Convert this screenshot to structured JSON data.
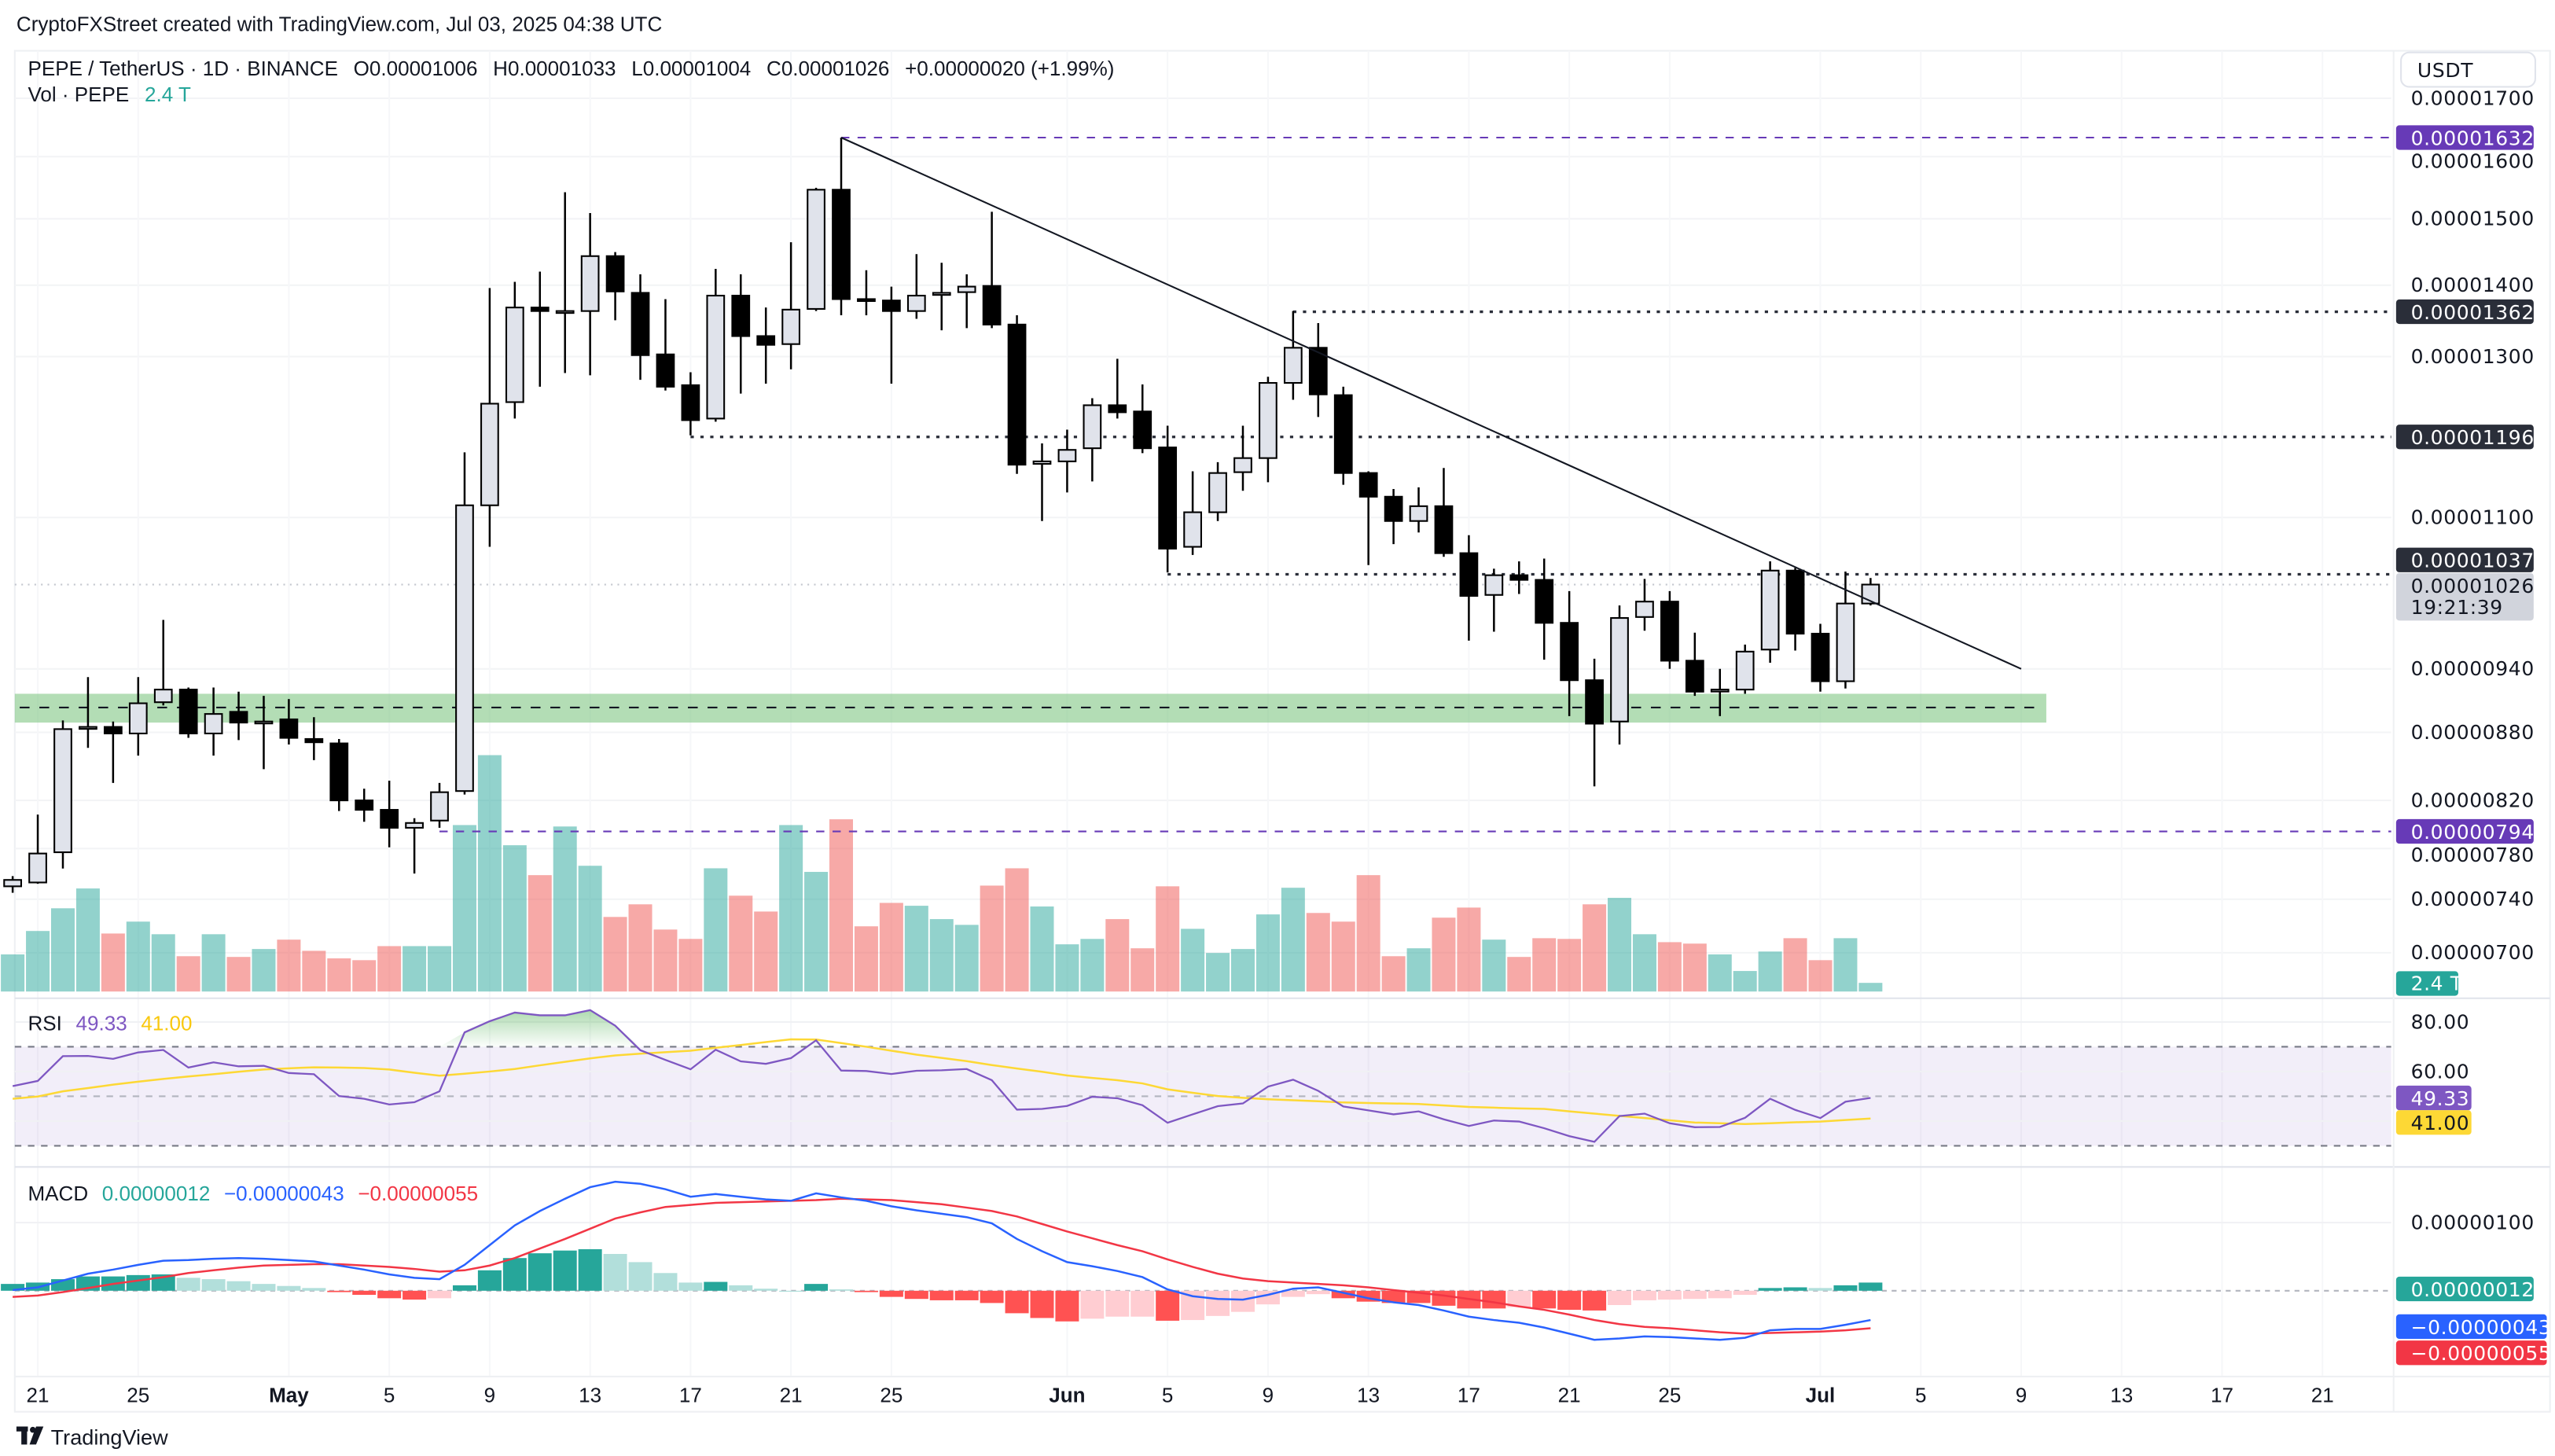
{
  "header": {
    "attribution": "CryptoFXStreet created with TradingView.com, Jul 03, 2025 04:38 UTC"
  },
  "legend": {
    "symbol": "PEPE / TetherUS · 1D · BINANCE",
    "o_label": "O",
    "o": "0.00001006",
    "h_label": "H",
    "h": "0.00001033",
    "l_label": "L",
    "l": "0.00001004",
    "c_label": "C",
    "c": "0.00001026",
    "change": "+0.00000020 (+1.99%)",
    "vol_label": "Vol · PEPE",
    "vol_value": "2.4 T"
  },
  "currency_button": "USDT",
  "price_axis": {
    "scale": "log",
    "ticks": [
      "0.00001700",
      "0.00001600",
      "0.00001500",
      "0.00001400",
      "0.00001300",
      "0.00001100",
      "0.00000940",
      "0.00000880",
      "0.00000820",
      "0.00000780",
      "0.00000740",
      "0.00000700"
    ],
    "tags": {
      "high_line": "0.00001632",
      "level_1362": "0.00001362",
      "level_1196": "0.00001196",
      "level_1037": "0.00001037",
      "last_price": "0.00001026",
      "countdown": "19:21:39",
      "low_line": "0.00000794",
      "volume": "2.4 T"
    }
  },
  "rsi": {
    "label": "RSI",
    "value": "49.33",
    "ma_value": "41.00",
    "ticks": [
      "80.00",
      "60.00"
    ],
    "bands": [
      70,
      50,
      30
    ]
  },
  "macd": {
    "label": "MACD",
    "hist_value": "0.00000012",
    "macd_value": "−0.00000043",
    "signal_value": "−0.00000055",
    "ticks": [
      "0.00000100"
    ]
  },
  "time_axis": [
    {
      "label": "21",
      "date": "2025-04-21"
    },
    {
      "label": "25",
      "date": "2025-04-25"
    },
    {
      "label": "May",
      "date": "2025-05-01",
      "bold": true
    },
    {
      "label": "5",
      "date": "2025-05-05"
    },
    {
      "label": "9",
      "date": "2025-05-09"
    },
    {
      "label": "13",
      "date": "2025-05-13"
    },
    {
      "label": "17",
      "date": "2025-05-17"
    },
    {
      "label": "21",
      "date": "2025-05-21"
    },
    {
      "label": "25",
      "date": "2025-05-25"
    },
    {
      "label": "Jun",
      "date": "2025-06-01",
      "bold": true
    },
    {
      "label": "5",
      "date": "2025-06-05"
    },
    {
      "label": "9",
      "date": "2025-06-09"
    },
    {
      "label": "13",
      "date": "2025-06-13"
    },
    {
      "label": "17",
      "date": "2025-06-17"
    },
    {
      "label": "21",
      "date": "2025-06-21"
    },
    {
      "label": "25",
      "date": "2025-06-25"
    },
    {
      "label": "Jul",
      "date": "2025-07-01",
      "bold": true
    },
    {
      "label": "5",
      "date": "2025-07-05"
    },
    {
      "label": "9",
      "date": "2025-07-09"
    },
    {
      "label": "13",
      "date": "2025-07-13"
    },
    {
      "label": "17",
      "date": "2025-07-17"
    },
    {
      "label": "21",
      "date": "2025-07-21"
    }
  ],
  "footer": {
    "logo_text": "TradingView"
  },
  "colors": {
    "up_candle": "#e0e3eb",
    "down_candle": "#000000",
    "vol_up": "#26a69a",
    "vol_down": "#ef5350",
    "purple_level": "#673ab7",
    "dark_tag": "#2a2e39",
    "support_zone": "#81c784",
    "rsi_line": "#7e57c2",
    "rsi_ma": "#fdd835",
    "macd_line": "#2962ff",
    "signal_line": "#f23645",
    "hist_up": "#26a69a",
    "hist_down": "#ff5252"
  },
  "chart_data": {
    "type": "candlestick",
    "columns": [
      "date",
      "open",
      "high",
      "low",
      "close",
      "volume"
    ],
    "candles": [
      [
        "2025-04-20",
        7.5e-06,
        7.58e-06,
        7.45e-06,
        7.55e-06,
        10300000000000.0
      ],
      [
        "2025-04-21",
        7.53e-06,
        8.08e-06,
        7.52e-06,
        7.76e-06,
        16800000000000.0
      ],
      [
        "2025-04-22",
        7.77e-06,
        8.91e-06,
        7.64e-06,
        8.83e-06,
        23100000000000.0
      ],
      [
        "2025-04-23",
        8.84e-06,
        9.32e-06,
        8.66e-06,
        8.85e-06,
        28600000000000.0
      ],
      [
        "2025-04-24",
        8.85e-06,
        8.9e-06,
        8.35e-06,
        8.79e-06,
        16100000000000.0
      ],
      [
        "2025-04-25",
        8.79e-06,
        9.32e-06,
        8.59e-06,
        9.07e-06,
        19400000000000.0
      ],
      [
        "2025-04-26",
        9.08e-06,
        9.89e-06,
        9.05e-06,
        9.2e-06,
        15900000000000.0
      ],
      [
        "2025-04-27",
        9.2e-06,
        9.22e-06,
        8.75e-06,
        8.79e-06,
        9800000000000.0
      ],
      [
        "2025-04-28",
        8.79e-06,
        9.22e-06,
        8.59e-06,
        8.97e-06,
        15900000000000.0
      ],
      [
        "2025-04-29",
        8.99e-06,
        9.18e-06,
        8.73e-06,
        8.89e-06,
        9600000000000.0
      ],
      [
        "2025-04-30",
        8.89e-06,
        9.14e-06,
        8.47e-06,
        8.9e-06,
        11800000000000.0
      ],
      [
        "2025-05-01",
        8.92e-06,
        9.11e-06,
        8.69e-06,
        8.75e-06,
        14400000000000.0
      ],
      [
        "2025-05-02",
        8.74e-06,
        8.94e-06,
        8.55e-06,
        8.71e-06,
        11300000000000.0
      ],
      [
        "2025-05-03",
        8.7e-06,
        8.74e-06,
        8.11e-06,
        8.2e-06,
        9200000000000.0
      ],
      [
        "2025-05-04",
        8.2e-06,
        8.3e-06,
        8.02e-06,
        8.12e-06,
        8700000000000.0
      ],
      [
        "2025-05-05",
        8.12e-06,
        8.37e-06,
        7.81e-06,
        7.97e-06,
        12600000000000.0
      ],
      [
        "2025-05-06",
        7.97e-06,
        8.05e-06,
        7.6e-06,
        8.01e-06,
        12600000000000.0
      ],
      [
        "2025-05-07",
        8.03e-06,
        8.35e-06,
        7.97e-06,
        8.27e-06,
        12600000000000.0
      ],
      [
        "2025-05-08",
        8.28e-06,
        1.177e-05,
        8.25e-06,
        1.114e-05,
        46200000000000.0
      ],
      [
        "2025-05-09",
        1.114e-05,
        1.396e-05,
        1.067e-05,
        1.238e-05,
        65600000000000.0
      ],
      [
        "2025-05-10",
        1.24e-05,
        1.405e-05,
        1.219e-05,
        1.368e-05,
        40600000000000.0
      ],
      [
        "2025-05-11",
        1.368e-05,
        1.42e-05,
        1.26e-05,
        1.363e-05,
        32300000000000.0
      ],
      [
        "2025-05-12",
        1.362e-05,
        1.542e-05,
        1.278e-05,
        1.363e-05,
        45800000000000.0
      ],
      [
        "2025-05-13",
        1.363e-05,
        1.509e-05,
        1.275e-05,
        1.443e-05,
        34900000000000.0
      ],
      [
        "2025-05-14",
        1.443e-05,
        1.449e-05,
        1.35e-05,
        1.391e-05,
        20700000000000.0
      ],
      [
        "2025-05-15",
        1.389e-05,
        1.416e-05,
        1.269e-05,
        1.302e-05,
        24200000000000.0
      ],
      [
        "2025-05-16",
        1.303e-05,
        1.38e-05,
        1.255e-05,
        1.26e-05,
        17200000000000.0
      ],
      [
        "2025-05-17",
        1.262e-05,
        1.279e-05,
        1.198e-05,
        1.217e-05,
        14600000000000.0
      ],
      [
        "2025-05-18",
        1.219e-05,
        1.424e-05,
        1.215e-05,
        1.385e-05,
        34200000000000.0
      ],
      [
        "2025-05-19",
        1.385e-05,
        1.416e-05,
        1.251e-05,
        1.328e-05,
        26600000000000.0
      ],
      [
        "2025-05-20",
        1.328e-05,
        1.368e-05,
        1.264e-05,
        1.316e-05,
        22200000000000.0
      ],
      [
        "2025-05-21",
        1.317e-05,
        1.464e-05,
        1.283e-05,
        1.365e-05,
        46200000000000.0
      ],
      [
        "2025-05-22",
        1.366e-05,
        1.549e-05,
        1.363e-05,
        1.546e-05,
        33200000000000.0
      ],
      [
        "2025-05-23",
        1.546e-05,
        1.632e-05,
        1.357e-05,
        1.38e-05,
        47800000000000.0
      ],
      [
        "2025-05-24",
        1.38e-05,
        1.422e-05,
        1.357e-05,
        1.379e-05,
        18100000000000.0
      ],
      [
        "2025-05-25",
        1.378e-05,
        1.398e-05,
        1.264e-05,
        1.363e-05,
        24600000000000.0
      ],
      [
        "2025-05-26",
        1.363e-05,
        1.446e-05,
        1.352e-05,
        1.385e-05,
        23800000000000.0
      ],
      [
        "2025-05-27",
        1.386e-05,
        1.433e-05,
        1.336e-05,
        1.389e-05,
        20100000000000.0
      ],
      [
        "2025-05-28",
        1.39e-05,
        1.416e-05,
        1.339e-05,
        1.398e-05,
        18500000000000.0
      ],
      [
        "2025-05-29",
        1.399e-05,
        1.511e-05,
        1.339e-05,
        1.344e-05,
        29400000000000.0
      ],
      [
        "2025-05-30",
        1.344e-05,
        1.357e-05,
        1.151e-05,
        1.162e-05,
        34200000000000.0
      ],
      [
        "2025-05-31",
        1.163e-05,
        1.188e-05,
        1.096e-05,
        1.166e-05,
        23600000000000.0
      ],
      [
        "2025-06-01",
        1.166e-05,
        1.205e-05,
        1.129e-05,
        1.18e-05,
        13100000000000.0
      ],
      [
        "2025-06-02",
        1.182e-05,
        1.245e-05,
        1.142e-05,
        1.236e-05,
        14600000000000.0
      ],
      [
        "2025-06-03",
        1.236e-05,
        1.297e-05,
        1.219e-05,
        1.227e-05,
        20100000000000.0
      ],
      [
        "2025-06-04",
        1.228e-05,
        1.263e-05,
        1.176e-05,
        1.182e-05,
        12000000000000.0
      ],
      [
        "2025-06-05",
        1.183e-05,
        1.21e-05,
        1.039e-05,
        1.065e-05,
        29200000000000.0
      ],
      [
        "2025-06-06",
        1.067e-05,
        1.154e-05,
        1.058e-05,
        1.106e-05,
        17400000000000.0
      ],
      [
        "2025-06-07",
        1.106e-05,
        1.165e-05,
        1.096e-05,
        1.152e-05,
        10700000000000.0
      ],
      [
        "2025-06-08",
        1.153e-05,
        1.21e-05,
        1.131e-05,
        1.17e-05,
        11800000000000.0
      ],
      [
        "2025-06-09",
        1.17e-05,
        1.273e-05,
        1.141e-05,
        1.265e-05,
        21400000000000.0
      ],
      [
        "2025-06-10",
        1.265e-05,
        1.363e-05,
        1.243e-05,
        1.312e-05,
        28800000000000.0
      ],
      [
        "2025-06-11",
        1.312e-05,
        1.346e-05,
        1.221e-05,
        1.25e-05,
        21800000000000.0
      ],
      [
        "2025-06-12",
        1.249e-05,
        1.26e-05,
        1.138e-05,
        1.152e-05,
        19400000000000.0
      ],
      [
        "2025-06-13",
        1.152e-05,
        1.154e-05,
        1.047e-05,
        1.124e-05,
        32300000000000.0
      ],
      [
        "2025-06-14",
        1.124e-05,
        1.133e-05,
        1.07e-05,
        1.096e-05,
        9800000000000.0
      ],
      [
        "2025-06-15",
        1.096e-05,
        1.135e-05,
        1.083e-05,
        1.113e-05,
        12000000000000.0
      ],
      [
        "2025-06-16",
        1.113e-05,
        1.158e-05,
        1.056e-05,
        1.06e-05,
        20500000000000.0
      ],
      [
        "2025-06-17",
        1.06e-05,
        1.08e-05,
        9.68e-06,
        1.014e-05,
        23300000000000.0
      ],
      [
        "2025-06-18",
        1.015e-05,
        1.043e-05,
        9.77e-06,
        1.036e-05,
        14400000000000.0
      ],
      [
        "2025-06-19",
        1.036e-05,
        1.051e-05,
        1.016e-05,
        1.031e-05,
        9600000000000.0
      ],
      [
        "2025-06-20",
        1.031e-05,
        1.054e-05,
        9.49e-06,
        9.86e-06,
        14800000000000.0
      ],
      [
        "2025-06-21",
        9.86e-06,
        1.019e-05,
        8.95e-06,
        9.29e-06,
        14600000000000.0
      ],
      [
        "2025-06-22",
        9.29e-06,
        9.5e-06,
        8.32e-06,
        8.88e-06,
        24200000000000.0
      ],
      [
        "2025-06-23",
        8.9e-06,
        1.004e-05,
        8.69e-06,
        9.91e-06,
        26000000000000.0
      ],
      [
        "2025-06-24",
        9.92e-06,
        1.032e-05,
        9.78e-06,
        1.008e-05,
        15900000000000.0
      ],
      [
        "2025-06-25",
        1.008e-05,
        1.019e-05,
        9.4e-06,
        9.48e-06,
        13700000000000.0
      ],
      [
        "2025-06-26",
        9.48e-06,
        9.76e-06,
        9.14e-06,
        9.18e-06,
        13300000000000.0
      ],
      [
        "2025-06-27",
        9.19e-06,
        9.4e-06,
        8.95e-06,
        9.2e-06,
        10300000000000.0
      ],
      [
        "2025-06-28",
        9.2e-06,
        9.64e-06,
        9.16e-06,
        9.57e-06,
        5700000000000.0
      ],
      [
        "2025-06-29",
        9.59e-06,
        1.051e-05,
        9.46e-06,
        1.041e-05,
        11100000000000.0
      ],
      [
        "2025-06-30",
        1.041e-05,
        1.044e-05,
        9.58e-06,
        9.75e-06,
        14800000000000.0
      ],
      [
        "2025-07-01",
        9.75e-06,
        9.85e-06,
        9.18e-06,
        9.28e-06,
        8700000000000.0
      ],
      [
        "2025-07-02",
        9.28e-06,
        1.04e-05,
        9.21e-06,
        1.006e-05,
        14800000000000.0
      ],
      [
        "2025-07-03",
        1.006e-05,
        1.033e-05,
        1.004e-05,
        1.026e-05,
        2400000000000.0
      ]
    ],
    "rsi": [
      54.1,
      56.2,
      66.2,
      66.3,
      65.1,
      67.7,
      68.7,
      61.6,
      63.7,
      62.1,
      62.3,
      59.4,
      58.9,
      50.1,
      49.0,
      46.7,
      47.6,
      52.0,
      75.8,
      80.3,
      83.8,
      82.7,
      82.7,
      84.8,
      78.5,
      68.6,
      64.7,
      60.9,
      68.8,
      64.1,
      63.1,
      65.4,
      72.6,
      60.4,
      60.2,
      59.0,
      60.3,
      60.5,
      61.0,
      56.5,
      44.6,
      44.9,
      46.1,
      49.8,
      49.2,
      46.4,
      39.3,
      42.7,
      46.0,
      47.1,
      53.9,
      56.7,
      52.2,
      45.9,
      44.3,
      42.7,
      43.9,
      40.7,
      38.0,
      40.2,
      39.8,
      37.1,
      33.9,
      31.6,
      42.0,
      43.0,
      39.1,
      37.5,
      37.6,
      41.3,
      49.0,
      44.5,
      41.2,
      47.8,
      49.33
    ],
    "rsi_ma": [
      49.0,
      49.9,
      52.0,
      53.3,
      54.7,
      55.9,
      57.0,
      58.0,
      58.9,
      59.9,
      60.8,
      61.3,
      61.7,
      61.6,
      61.4,
      60.8,
      59.5,
      58.3,
      59.1,
      60.0,
      61.0,
      62.5,
      63.9,
      65.3,
      66.5,
      67.2,
      67.8,
      68.4,
      69.6,
      70.7,
      71.9,
      73.0,
      72.9,
      71.5,
      70.0,
      68.4,
      66.8,
      65.5,
      64.2,
      62.6,
      61.2,
      59.9,
      58.4,
      57.4,
      56.5,
      55.2,
      52.8,
      51.4,
      50.1,
      49.4,
      48.8,
      48.4,
      48.0,
      47.5,
      47.3,
      47.1,
      46.9,
      46.3,
      45.7,
      45.4,
      45.1,
      44.9,
      43.9,
      43.0,
      42.1,
      41.2,
      40.3,
      39.4,
      39.1,
      38.8,
      39.1,
      39.5,
      39.8,
      40.4,
      41.0
    ],
    "macd": [
      1e-08,
      5e-08,
      1.5e-07,
      2.5e-07,
      3.1e-07,
      3.8e-07,
      4.4e-07,
      4.5e-07,
      4.7e-07,
      4.8e-07,
      4.7e-07,
      4.5e-07,
      4.3e-07,
      3.7e-07,
      3.1e-07,
      2.4e-07,
      1.9e-07,
      1.7e-07,
      3.8e-07,
      6.7e-07,
      9.6e-07,
      1.17e-06,
      1.35e-06,
      1.52e-06,
      1.6e-06,
      1.57e-06,
      1.49e-06,
      1.38e-06,
      1.42e-06,
      1.38e-06,
      1.34e-06,
      1.32e-06,
      1.43e-06,
      1.37e-06,
      1.32e-06,
      1.24e-06,
      1.18e-06,
      1.13e-06,
      1.08e-06,
      9.9e-07,
      7.6e-07,
      5.8e-07,
      4.2e-07,
      3.6e-07,
      2.9e-07,
      2e-07,
      2e-08,
      -8e-08,
      -1.2e-07,
      -1.3e-07,
      -6e-08,
      3e-08,
      5e-08,
      -3e-08,
      -1.1e-07,
      -1.7e-07,
      -2.1e-07,
      -2.9e-07,
      -3.8e-07,
      -4.3e-07,
      -4.7e-07,
      -5.4e-07,
      -6.3e-07,
      -7.2e-07,
      -7e-07,
      -6.7e-07,
      -6.8e-07,
      -7e-07,
      -7.2e-07,
      -6.9e-07,
      -5.8e-07,
      -5.6e-07,
      -5.6e-07,
      -5e-07,
      -4.3e-07
    ],
    "signal": [
      -9e-08,
      -7e-08,
      -2e-08,
      4e-08,
      1e-07,
      1.5e-07,
      2e-07,
      2.6e-07,
      3e-07,
      3.4e-07,
      3.7e-07,
      3.8e-07,
      3.9e-07,
      3.9e-07,
      3.7e-07,
      3.5e-07,
      3.2e-07,
      2.8e-07,
      3e-07,
      3.7e-07,
      4.8e-07,
      6.2e-07,
      7.6e-07,
      9.1e-07,
      1.06e-06,
      1.15e-06,
      1.23e-06,
      1.26e-06,
      1.29e-06,
      1.3e-06,
      1.31e-06,
      1.32e-06,
      1.33e-06,
      1.35e-06,
      1.34e-06,
      1.33e-06,
      1.3e-06,
      1.27e-06,
      1.22e-06,
      1.17e-06,
      1.09e-06,
      9.8e-07,
      8.7e-07,
      7.7e-07,
      6.7e-07,
      5.8e-07,
      4.6e-07,
      3.5e-07,
      2.5e-07,
      1.8e-07,
      1.4e-07,
      1.2e-07,
      1e-07,
      8e-08,
      5e-08,
      1e-08,
      -3e-08,
      -7e-08,
      -1.2e-07,
      -1.7e-07,
      -2.3e-07,
      -2.8e-07,
      -3.5e-07,
      -4.3e-07,
      -4.9e-07,
      -5.3e-07,
      -5.5e-07,
      -5.8e-07,
      -6.1e-07,
      -6.3e-07,
      -6.2e-07,
      -6.1e-07,
      -6e-07,
      -5.8e-07,
      -5.5e-07
    ],
    "annotations": {
      "trendline": {
        "from": [
          "2025-05-23",
          1.632e-05
        ],
        "to": [
          "2025-07-09",
          9.4e-06
        ]
      },
      "levels": [
        {
          "price": 1.632e-05,
          "from": "2025-05-23",
          "style": "dashed",
          "color": "#673ab7"
        },
        {
          "price": 1.362e-05,
          "from": "2025-06-10",
          "style": "dotted",
          "color": "#2a2e39"
        },
        {
          "price": 1.196e-05,
          "from": "2025-05-17",
          "style": "dotted",
          "color": "#2a2e39"
        },
        {
          "price": 1.037e-05,
          "from": "2025-06-05",
          "style": "dotted",
          "color": "#2a2e39"
        },
        {
          "price": 7.94e-06,
          "from": "2025-05-07",
          "style": "dashed",
          "color": "#673ab7"
        }
      ],
      "support_zone": {
        "low": 8.89e-06,
        "high": 9.16e-06,
        "mid": 9.03e-06,
        "to": "2025-07-10"
      }
    }
  }
}
